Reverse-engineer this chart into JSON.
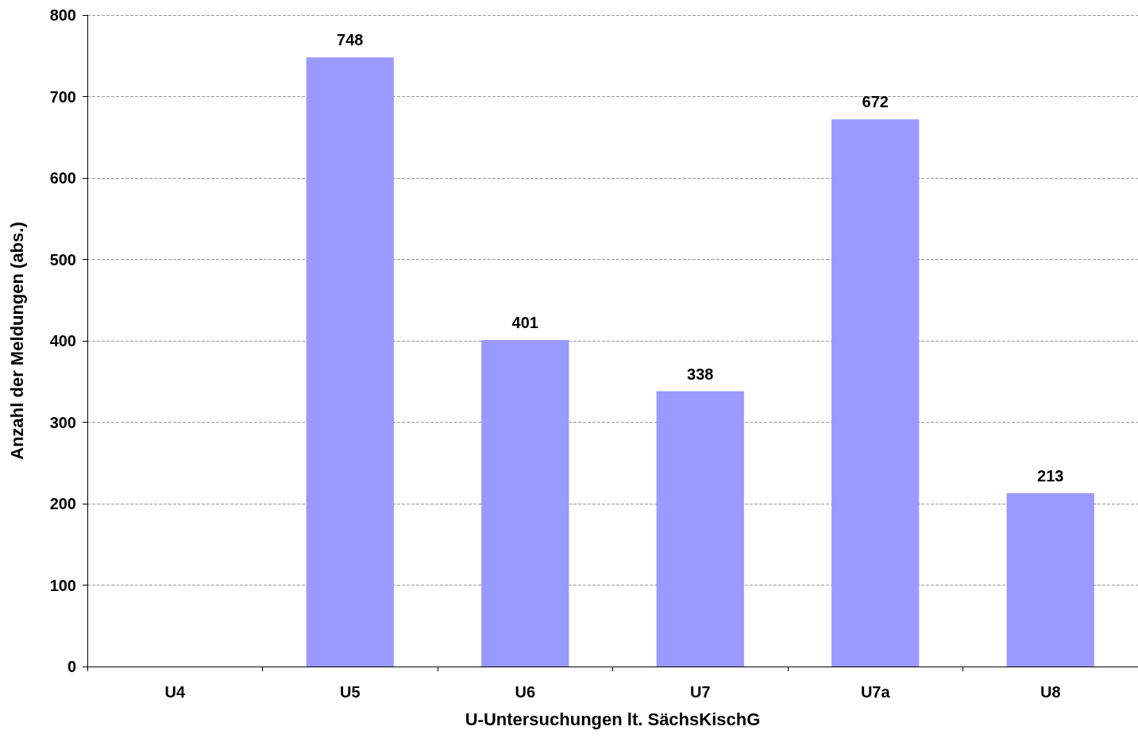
{
  "chart_data": {
    "type": "bar",
    "xlabel": "U-Untersuchungen lt. SächsKischG",
    "ylabel": "Anzahl der Meldungen (abs.)",
    "categories": [
      "U4",
      "U5",
      "U6",
      "U7",
      "U7a",
      "U8"
    ],
    "values": [
      null,
      748,
      401,
      338,
      672,
      213
    ],
    "color": "#9999ff",
    "ylim": [
      0,
      800
    ],
    "yticks": [
      0,
      100,
      200,
      300,
      400,
      500,
      600,
      700,
      800
    ],
    "grid": "y",
    "data_labels": true
  }
}
